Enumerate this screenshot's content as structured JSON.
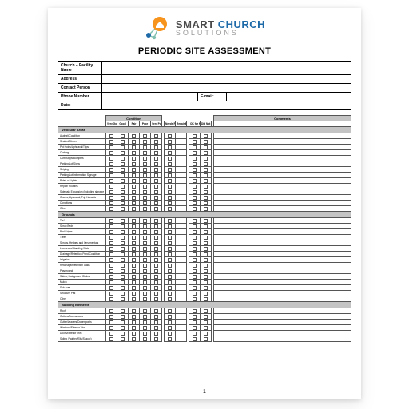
{
  "colors": {
    "brand_orange": "#f7941e",
    "brand_blue": "#1e6aa8",
    "brand_teal": "#7fbfb0",
    "brand_text_dark": "#4a4a4a",
    "brand_text_grey": "#9a9a9a",
    "band_grey": "#c4c4c4",
    "border": "#000000"
  },
  "logo": {
    "line1_a": "SMART",
    "line1_b": " CHURCH",
    "line2": "SOLUTIONS"
  },
  "title": "PERIODIC SITE ASSESSMENT",
  "info_fields": {
    "facility": "Church – Facility Name",
    "address": "Address",
    "contact": "Contact Person",
    "phone": "Phone Number",
    "email": "E-mail:",
    "date": "Date:"
  },
  "headers": {
    "condition": "Condition",
    "comments": "Comments",
    "cols": [
      "Very Good",
      "Good",
      "Fair",
      "Poor",
      "Very Poor",
      "Needs Repair",
      "Repair By (DD/MM/YY)",
      "OK for Now",
      "Did Not See"
    ]
  },
  "sections": [
    {
      "name": "Vehicular Areas",
      "rows": [
        "Asphalt Condition",
        "Sealant/Striper",
        "Pot Holes/Upheaval/Trips",
        "Curbing",
        "Curb Stops/Bumpers",
        "Parking Lot Signs",
        "Striping",
        "Parking Lot Information Signage",
        "Pole/Lot Lights",
        "Repair/Troubles",
        "Sidewalk Expansion (including signage and lights)",
        "Cracks, Upheaval, Trip Hazards",
        "Conditions",
        "Other"
      ]
    },
    {
      "name": "Grounds",
      "rows": [
        "Turf",
        "Shrub Beds",
        "Bed Edges",
        "Trees",
        "Shrubs, Hedges and Ornamentals",
        "Low Areas/Standing Water",
        "Drainage/Retention Pond Condition",
        "Irrigation",
        "Retainage/Detention Walls",
        "Playground",
        "Slides, Swings and Gliders",
        "Mulch",
        "Sub Area",
        "Structure Plat",
        "Other"
      ]
    },
    {
      "name": "Building Elements",
      "rows": [
        "Roof",
        "Gutters/Downspouts",
        "Gutter/Leaders/Downspouts",
        "Windows/Exterior Trim",
        "Doors/Exterior Trim",
        "Siding (Painted/Eifs/Stucco)"
      ]
    }
  ],
  "page_number": "1"
}
